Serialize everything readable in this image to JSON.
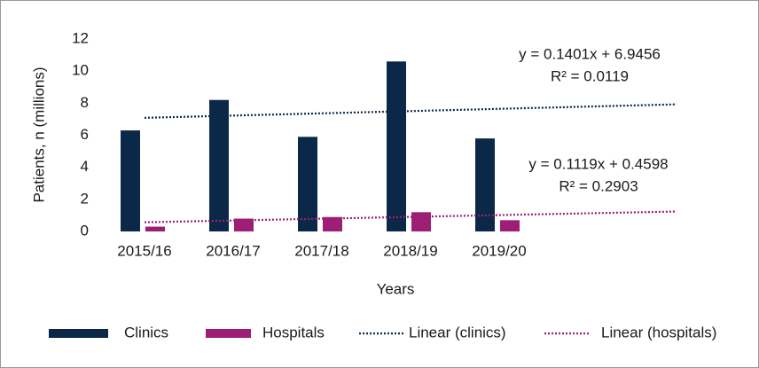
{
  "chart_data": {
    "type": "bar",
    "y_label": "Patients, n (millions)",
    "x_label": "Years",
    "categories": [
      "2015/16",
      "2016/17",
      "2017/18",
      "2018/19",
      "2019/20"
    ],
    "series": [
      {
        "name": "Clinics",
        "color": "#0c2849",
        "values": [
          6.3,
          8.2,
          5.9,
          10.6,
          5.8
        ]
      },
      {
        "name": "Hospitals",
        "color": "#9c1f75",
        "values": [
          0.3,
          0.8,
          0.9,
          1.2,
          0.7
        ]
      }
    ],
    "trendlines": [
      {
        "name": "Linear (clinics)",
        "color": "#0c2849",
        "slope": 0.1401,
        "intercept": 6.9456,
        "forward": 2,
        "equation": "y = 0.1401x + 6.9456",
        "r2_label": "R² = 0.0119"
      },
      {
        "name": "Linear (hospitals)",
        "color": "#9c1f75",
        "slope": 0.1119,
        "intercept": 0.4598,
        "forward": 2,
        "equation": "y = 0.1119x + 0.4598",
        "r2_label": "R² = 0.2903"
      }
    ],
    "ylim": [
      0,
      12
    ],
    "yticks": [
      0,
      2,
      4,
      6,
      8,
      10,
      12
    ],
    "grid": false
  }
}
